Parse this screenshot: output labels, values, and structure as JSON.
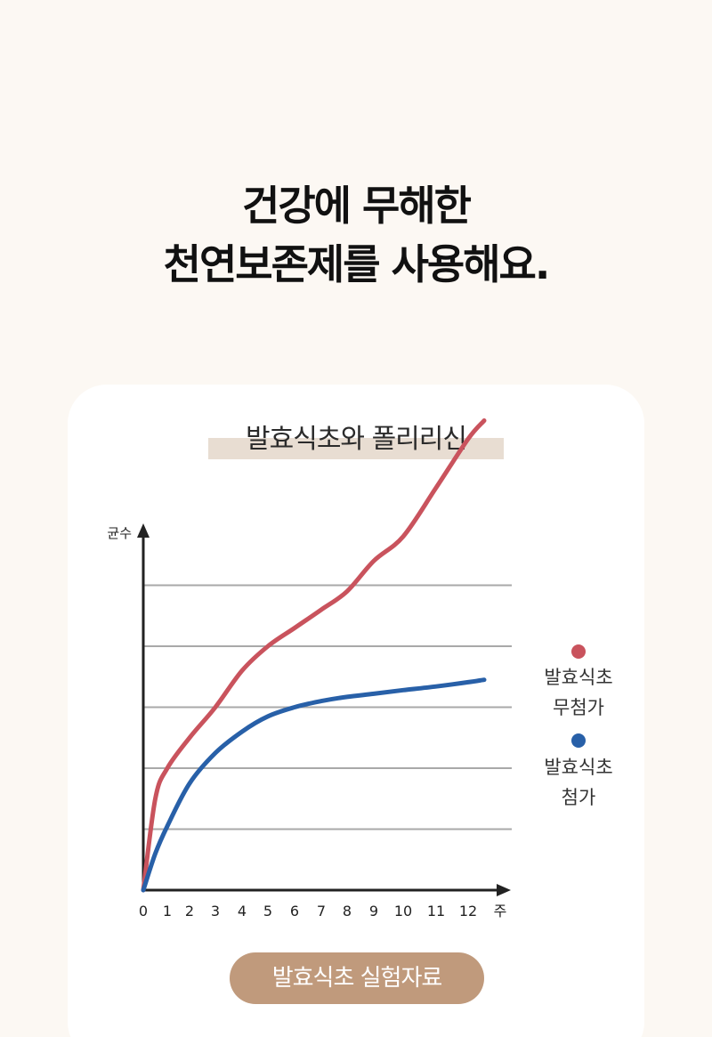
{
  "headline": {
    "line1": "건강에 무해한",
    "line2": "천연보존제를 사용해요."
  },
  "button_label": "발효식초 실험자료",
  "legend": {
    "series1_line1": "발효식초",
    "series1_line2": "무첨가",
    "series2_line1": "발효식초",
    "series2_line2": "첨가"
  },
  "colors": {
    "background": "#fcf8f3",
    "red_series": "#c9535d",
    "blue_series": "#2860a8",
    "button": "#c09a7c",
    "title_highlight": "#e8ddd2"
  },
  "chart_data": {
    "type": "line",
    "title": "발효식초와 폴리리신",
    "ylabel": "균수",
    "xlabel": "주",
    "x_tick_labels": [
      "0",
      "1",
      "2",
      "3",
      "4",
      "5",
      "6",
      "7",
      "8",
      "9",
      "10",
      "11",
      "12"
    ],
    "y_ticks_shown": false,
    "grid": true,
    "series": [
      {
        "name": "발효식초 무첨가",
        "color": "#c9535d",
        "x": [
          0,
          0.5,
          1,
          2,
          3,
          4,
          5,
          6,
          7,
          8,
          9,
          10,
          11,
          12,
          12.5
        ],
        "y": [
          0,
          1.5,
          2.0,
          2.5,
          3.0,
          3.6,
          4.0,
          4.3,
          4.6,
          4.9,
          5.4,
          5.8,
          6.6,
          7.4,
          7.7
        ]
      },
      {
        "name": "발효식초 첨가",
        "color": "#2860a8",
        "x": [
          0,
          0.5,
          1,
          2,
          3,
          4,
          5,
          6,
          7,
          8,
          9,
          10,
          11,
          12,
          12.5
        ],
        "y": [
          0,
          0.6,
          1.05,
          1.75,
          2.25,
          2.6,
          2.85,
          3.0,
          3.1,
          3.17,
          3.22,
          3.28,
          3.34,
          3.41,
          3.45
        ]
      }
    ],
    "legend_position": "right"
  }
}
